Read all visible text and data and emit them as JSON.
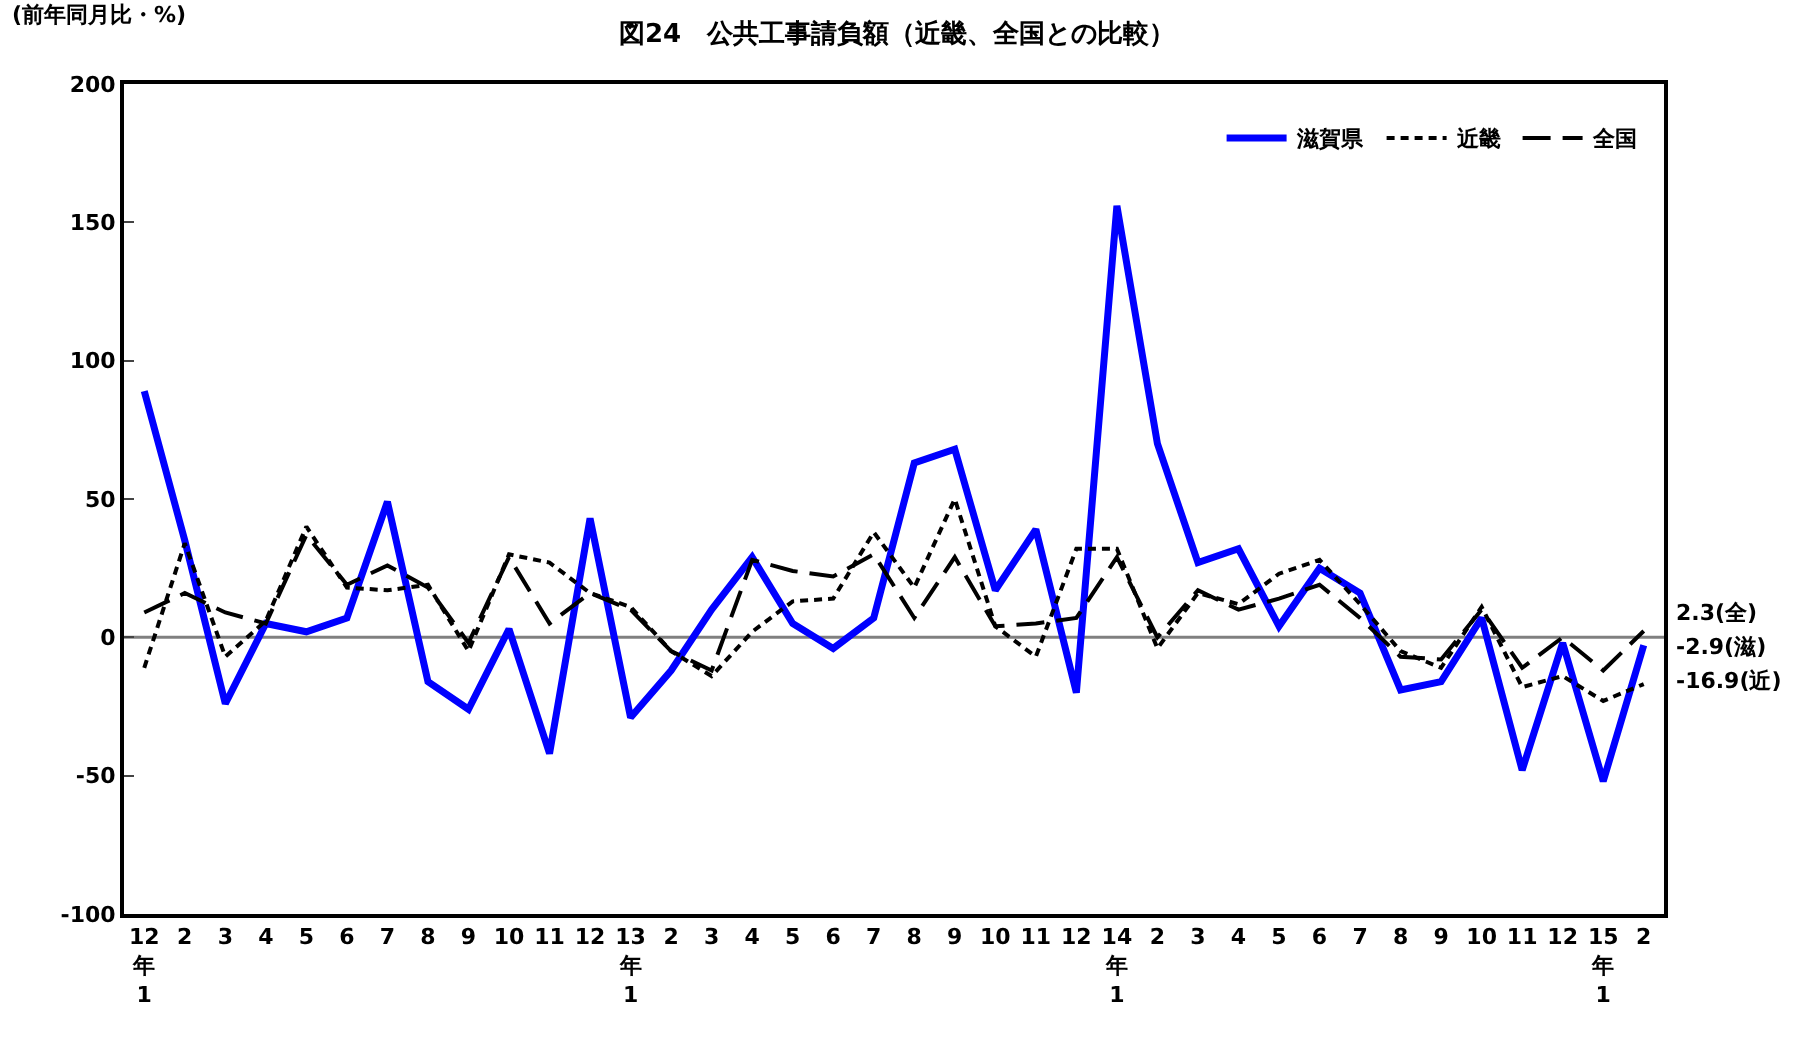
{
  "chart_data": {
    "type": "line",
    "title": "図24　公共工事請負額（近畿、全国との比較）",
    "ylabel": "(前年同月比・%)",
    "categories": [
      "12\n年\n1",
      "2",
      "3",
      "4",
      "5",
      "6",
      "7",
      "8",
      "9",
      "10",
      "11",
      "12",
      "13\n年\n1",
      "2",
      "3",
      "4",
      "5",
      "6",
      "7",
      "8",
      "9",
      "10",
      "11",
      "12",
      "14\n年\n1",
      "2",
      "3",
      "4",
      "5",
      "6",
      "7",
      "8",
      "9",
      "10",
      "11",
      "12",
      "15\n年\n1",
      "2"
    ],
    "series": [
      {
        "name": "滋賀県",
        "color": "#0000ff",
        "line_style": "solid",
        "values": [
          89,
          35,
          -24,
          5,
          2,
          7,
          49,
          -16,
          -26,
          3,
          -42,
          43,
          -29,
          -12,
          10,
          29,
          5,
          -4,
          7,
          63,
          68,
          17,
          39,
          -20,
          156,
          70,
          27,
          32,
          4,
          25,
          16,
          -19,
          -16,
          7,
          -48,
          -2,
          -52,
          -2.9
        ]
      },
      {
        "name": "近畿",
        "color": "#000000",
        "line_style": "dotted",
        "values": [
          -11,
          34,
          -7,
          6,
          40,
          18,
          17,
          19,
          -5,
          30,
          27,
          16,
          11,
          -5,
          -14,
          2,
          13,
          14,
          38,
          18,
          50,
          4,
          -7,
          32,
          32,
          -4,
          16,
          12,
          23,
          28,
          12,
          -5,
          -11,
          11,
          -18,
          -14,
          -23,
          -16.9
        ]
      },
      {
        "name": "全国",
        "color": "#000000",
        "line_style": "dashed",
        "values": [
          9,
          16,
          9,
          5,
          37,
          19,
          26,
          18,
          -2,
          29,
          5,
          16,
          10,
          -5,
          -12,
          28,
          24,
          22,
          30,
          7,
          29,
          4,
          5,
          7,
          29,
          0,
          17,
          10,
          14,
          19,
          7,
          -7,
          -8,
          10,
          -11,
          0,
          -12,
          2.3
        ]
      }
    ],
    "ylim": [
      -100,
      200
    ],
    "yticks": [
      -100,
      -50,
      0,
      50,
      100,
      150,
      200
    ],
    "ref_lines": [
      {
        "axis": "y",
        "value": 0,
        "color": "#808080"
      }
    ],
    "annotations": [
      "2.3(全)",
      "-2.9(滋)",
      "-16.9(近)"
    ],
    "grid": false,
    "legend": "top right",
    "marker": "none"
  }
}
